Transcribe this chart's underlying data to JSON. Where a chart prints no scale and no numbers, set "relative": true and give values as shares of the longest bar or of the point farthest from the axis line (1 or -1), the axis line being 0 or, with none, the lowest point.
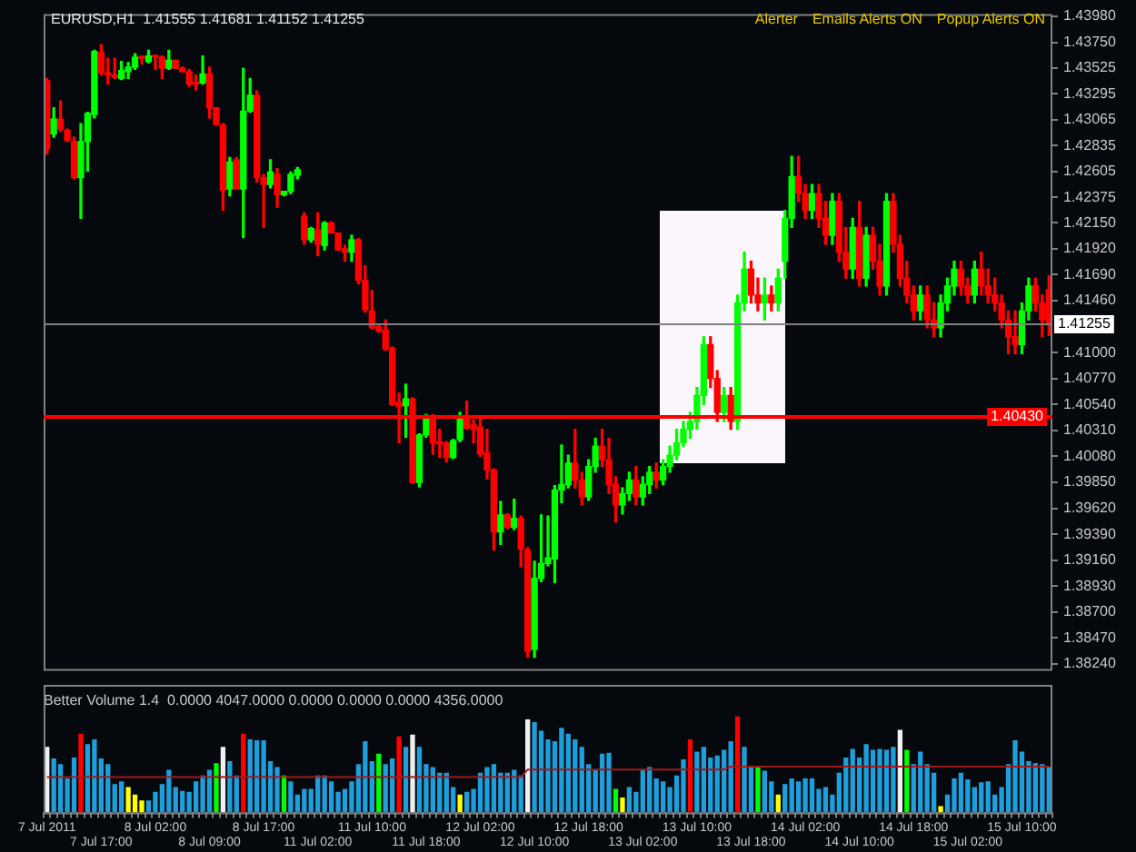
{
  "chart_data": [
    {
      "type": "candlestick",
      "title": "EURUSD,H1  1.41555 1.41681 1.41152 1.41255",
      "annotations": [
        "Alerter",
        "Emails Alerts ON",
        "Popup Alerts ON"
      ],
      "tick_labels": "y",
      "categories": [
        null,
        null,
        null,
        null,
        null,
        null,
        null,
        null,
        null,
        null,
        null,
        null,
        null,
        null,
        null,
        null,
        null,
        null,
        null,
        null,
        null,
        null,
        null,
        null,
        null,
        null,
        null,
        null,
        null,
        null,
        null,
        null,
        null,
        null,
        null,
        null,
        null,
        null,
        null,
        null,
        null,
        null,
        null,
        null,
        null,
        null,
        null,
        null,
        null,
        null,
        null,
        null,
        null,
        null,
        null,
        null,
        null,
        null,
        null,
        null,
        null,
        null,
        null,
        null,
        null,
        null,
        null,
        null,
        null,
        null,
        null,
        null,
        null,
        null,
        null,
        null,
        null,
        null,
        null,
        null,
        null,
        null,
        null,
        null,
        null,
        null,
        null,
        null,
        null,
        null,
        null,
        null,
        null,
        null,
        null,
        null,
        null,
        null,
        null,
        null,
        null,
        null,
        null,
        null,
        null,
        null,
        null,
        null,
        null,
        null,
        null,
        null,
        null,
        null,
        null,
        null,
        null,
        null,
        null,
        null,
        null,
        null,
        null,
        null,
        null,
        null,
        null,
        null,
        null,
        null,
        null,
        null,
        null,
        null,
        null,
        null,
        null,
        null,
        null,
        null,
        null,
        null,
        null,
        null,
        null,
        null,
        null,
        null,
        null
      ],
      "ohlc": [
        [
          1.4341,
          1.4343,
          1.4276,
          1.4281
        ],
        [
          1.4294,
          1.4317,
          1.4291,
          1.4307
        ],
        [
          1.4307,
          1.4323,
          1.4296,
          1.4298
        ],
        [
          1.4297,
          1.4298,
          1.4287,
          1.4288
        ],
        [
          1.4287,
          1.4291,
          1.4254,
          1.4255
        ],
        [
          1.4255,
          1.4303,
          1.4219,
          1.4287
        ],
        [
          1.4287,
          1.4313,
          1.4261,
          1.4312
        ],
        [
          1.4311,
          1.4368,
          1.4308,
          1.4367
        ],
        [
          1.4366,
          1.4373,
          1.4346,
          1.4348
        ],
        [
          1.4348,
          1.4361,
          1.4338,
          1.4346
        ],
        [
          1.4346,
          1.4361,
          1.4343,
          1.4344
        ],
        [
          1.4343,
          1.4358,
          1.4342,
          1.435
        ],
        [
          1.4349,
          1.4357,
          1.4343,
          1.4353
        ],
        [
          1.4353,
          1.4365,
          1.4351,
          1.4362
        ],
        [
          1.4362,
          1.4363,
          1.4356,
          1.4361
        ],
        [
          1.4358,
          1.4368,
          1.4357,
          1.4363
        ],
        [
          1.4363,
          1.4363,
          1.4351,
          1.4362
        ],
        [
          1.4362,
          1.4363,
          1.4343,
          1.4352
        ],
        [
          1.4352,
          1.4368,
          1.4351,
          1.4359
        ],
        [
          1.4359,
          1.4359,
          1.4352,
          1.4352
        ],
        [
          1.4352,
          1.4353,
          1.4349,
          1.4349
        ],
        [
          1.4349,
          1.4351,
          1.4336,
          1.4338
        ],
        [
          1.4339,
          1.4346,
          1.4333,
          1.4338
        ],
        [
          1.4339,
          1.4363,
          1.4338,
          1.4347
        ],
        [
          1.4347,
          1.4353,
          1.4308,
          1.4317
        ],
        [
          1.4317,
          1.4317,
          1.4302,
          1.4302
        ],
        [
          1.4302,
          1.4303,
          1.4226,
          1.4244
        ],
        [
          1.4245,
          1.4273,
          1.4239,
          1.4269
        ],
        [
          1.4271,
          1.4273,
          1.4245,
          1.4245
        ],
        [
          1.4245,
          1.4352,
          1.4202,
          1.4314
        ],
        [
          1.4314,
          1.4343,
          1.4313,
          1.4328
        ],
        [
          1.4328,
          1.4332,
          1.4251,
          1.4255
        ],
        [
          1.4255,
          1.4258,
          1.4211,
          1.4249
        ],
        [
          1.4249,
          1.4271,
          1.4246,
          1.426
        ],
        [
          1.4258,
          1.4263,
          1.4229,
          1.424
        ],
        [
          1.424,
          1.4243,
          1.4239,
          1.4243
        ],
        [
          1.4243,
          1.426,
          1.4241,
          1.4258
        ],
        [
          1.4257,
          1.4264,
          1.4254,
          1.4262
        ],
        [
          1.4221,
          1.4224,
          1.4196,
          1.42
        ],
        [
          1.42,
          1.4211,
          1.4198,
          1.421
        ],
        [
          1.4209,
          1.4224,
          1.4186,
          1.4196
        ],
        [
          1.4195,
          1.4216,
          1.4191,
          1.4215
        ],
        [
          1.4215,
          1.4216,
          1.4206,
          1.4206
        ],
        [
          1.4206,
          1.4206,
          1.4191,
          1.4191
        ],
        [
          1.4192,
          1.4195,
          1.4181,
          1.4189
        ],
        [
          1.4189,
          1.4204,
          1.4181,
          1.42
        ],
        [
          1.42,
          1.4201,
          1.4161,
          1.4164
        ],
        [
          1.4164,
          1.4177,
          1.4136,
          1.4138
        ],
        [
          1.4137,
          1.4155,
          1.4121,
          1.4122
        ],
        [
          1.4123,
          1.4125,
          1.4118,
          1.4119
        ],
        [
          1.412,
          1.4129,
          1.4102,
          1.4103
        ],
        [
          1.4104,
          1.4105,
          1.4053,
          1.4054
        ],
        [
          1.4056,
          1.4064,
          1.402,
          1.4052
        ],
        [
          1.4053,
          1.4072,
          1.4025,
          1.4059
        ],
        [
          1.4059,
          1.406,
          1.3984,
          1.3985
        ],
        [
          1.3985,
          1.4028,
          1.3981,
          1.4027
        ],
        [
          1.4027,
          1.4045,
          1.4025,
          1.4042
        ],
        [
          1.4042,
          1.4045,
          1.401,
          1.402
        ],
        [
          1.4021,
          1.4032,
          1.4007,
          1.4019
        ],
        [
          1.402,
          1.4021,
          1.4003,
          1.4007
        ],
        [
          1.4007,
          1.4023,
          1.4006,
          1.4022
        ],
        [
          1.4023,
          1.4047,
          1.4021,
          1.4043
        ],
        [
          1.4042,
          1.4057,
          1.4032,
          1.4033
        ],
        [
          1.4036,
          1.404,
          1.402,
          1.4032
        ],
        [
          1.4034,
          1.4042,
          1.4008,
          1.401
        ],
        [
          1.4011,
          1.4032,
          1.3988,
          1.3996
        ],
        [
          1.3996,
          1.3997,
          1.3925,
          1.3941
        ],
        [
          1.3941,
          1.3968,
          1.393,
          1.3956
        ],
        [
          1.3956,
          1.3957,
          1.3944,
          1.3945
        ],
        [
          1.3945,
          1.397,
          1.3943,
          1.3953
        ],
        [
          1.3953,
          1.3955,
          1.391,
          1.3926
        ],
        [
          1.3925,
          1.3927,
          1.383,
          1.3835
        ],
        [
          1.3837,
          1.3915,
          1.383,
          1.39
        ],
        [
          1.39,
          1.3956,
          1.3897,
          1.3913
        ],
        [
          1.3913,
          1.3955,
          1.3911,
          1.3918
        ],
        [
          1.3917,
          1.3982,
          1.3896,
          1.3978
        ],
        [
          1.3978,
          1.4018,
          1.3967,
          1.3983
        ],
        [
          1.3983,
          1.4009,
          1.398,
          1.4002
        ],
        [
          1.4002,
          1.4032,
          1.398,
          1.3987
        ],
        [
          1.3987,
          1.3994,
          1.3965,
          1.3972
        ],
        [
          1.3972,
          1.4005,
          1.3969,
          1.3999
        ],
        [
          1.3999,
          1.4024,
          1.3994,
          1.4017
        ],
        [
          1.4017,
          1.4032,
          1.3999,
          1.4005
        ],
        [
          1.4005,
          1.4024,
          1.3975,
          1.3983
        ],
        [
          1.3983,
          1.399,
          1.395,
          1.3965
        ],
        [
          1.3965,
          1.398,
          1.3957,
          1.3975
        ],
        [
          1.3975,
          1.3994,
          1.3969,
          1.3987
        ],
        [
          1.3987,
          1.3999,
          1.3965,
          1.3972
        ],
        [
          1.3972,
          1.399,
          1.3965,
          1.3983
        ],
        [
          1.3983,
          1.3999,
          1.3975,
          1.3994
        ],
        [
          1.3994,
          1.4002,
          1.398,
          1.3987
        ],
        [
          1.3987,
          1.4005,
          1.3983,
          1.3999
        ],
        [
          1.3999,
          1.4017,
          1.3994,
          1.4009
        ],
        [
          1.4009,
          1.4032,
          1.4005,
          1.402
        ],
        [
          1.402,
          1.4039,
          1.4017,
          1.4032
        ],
        [
          1.4032,
          1.4047,
          1.4024,
          1.4039
        ],
        [
          1.4039,
          1.4069,
          1.4032,
          1.4062
        ],
        [
          1.4062,
          1.4114,
          1.4054,
          1.4107
        ],
        [
          1.4107,
          1.4114,
          1.4069,
          1.4077
        ],
        [
          1.4077,
          1.4084,
          1.4039,
          1.4047
        ],
        [
          1.4047,
          1.4069,
          1.4039,
          1.4062
        ],
        [
          1.4062,
          1.4069,
          1.4032,
          1.4039
        ],
        [
          1.4039,
          1.4151,
          1.4032,
          1.4144
        ],
        [
          1.4144,
          1.4189,
          1.4137,
          1.4174
        ],
        [
          1.4174,
          1.4181,
          1.4144,
          1.4151
        ],
        [
          1.4151,
          1.4166,
          1.4137,
          1.4144
        ],
        [
          1.4144,
          1.4166,
          1.4129,
          1.4151
        ],
        [
          1.4151,
          1.4159,
          1.4137,
          1.4144
        ],
        [
          1.4144,
          1.4174,
          1.4137,
          1.4166
        ],
        [
          1.4181,
          1.4226,
          1.4166,
          1.4219
        ],
        [
          1.4219,
          1.4274,
          1.4211,
          1.4256
        ],
        [
          1.4256,
          1.4274,
          1.4234,
          1.4241
        ],
        [
          1.4241,
          1.4249,
          1.4219,
          1.4226
        ],
        [
          1.4226,
          1.4249,
          1.4219,
          1.4241
        ],
        [
          1.4241,
          1.4249,
          1.4211,
          1.4219
        ],
        [
          1.4219,
          1.4234,
          1.4196,
          1.4204
        ],
        [
          1.4204,
          1.4241,
          1.4196,
          1.4234
        ],
        [
          1.4234,
          1.4241,
          1.4181,
          1.4189
        ],
        [
          1.4189,
          1.4211,
          1.4166,
          1.4174
        ],
        [
          1.4174,
          1.4219,
          1.4166,
          1.4211
        ],
        [
          1.4211,
          1.4234,
          1.4159,
          1.4166
        ],
        [
          1.4166,
          1.4211,
          1.4159,
          1.4204
        ],
        [
          1.4204,
          1.4211,
          1.4174,
          1.4181
        ],
        [
          1.4181,
          1.4196,
          1.4151,
          1.4159
        ],
        [
          1.4159,
          1.4241,
          1.4151,
          1.4234
        ],
        [
          1.4234,
          1.4241,
          1.4189,
          1.4196
        ],
        [
          1.4196,
          1.4204,
          1.4159,
          1.4166
        ],
        [
          1.4166,
          1.4181,
          1.4144,
          1.4151
        ],
        [
          1.4151,
          1.4159,
          1.4129,
          1.4137
        ],
        [
          1.4137,
          1.4159,
          1.4129,
          1.4151
        ],
        [
          1.4151,
          1.4159,
          1.4122,
          1.4129
        ],
        [
          1.4129,
          1.4144,
          1.4114,
          1.4122
        ],
        [
          1.4122,
          1.4151,
          1.4114,
          1.4144
        ],
        [
          1.4144,
          1.4166,
          1.4137,
          1.4159
        ],
        [
          1.4159,
          1.4181,
          1.4151,
          1.4174
        ],
        [
          1.4174,
          1.4181,
          1.4151,
          1.4159
        ],
        [
          1.4159,
          1.4166,
          1.4144,
          1.4151
        ],
        [
          1.4151,
          1.4181,
          1.4144,
          1.4174
        ],
        [
          1.4174,
          1.4189,
          1.4151,
          1.4159
        ],
        [
          1.4159,
          1.4174,
          1.4144,
          1.4151
        ],
        [
          1.4151,
          1.4166,
          1.4137,
          1.4144
        ],
        [
          1.4144,
          1.4151,
          1.4122,
          1.4129
        ],
        [
          1.4129,
          1.4137,
          1.4099,
          1.4114
        ],
        [
          1.4114,
          1.4137,
          1.4099,
          1.4107
        ],
        [
          1.4107,
          1.4144,
          1.4099,
          1.4137
        ],
        [
          1.4137,
          1.4166,
          1.4129,
          1.4159
        ],
        [
          1.4159,
          1.4166,
          1.4137,
          1.4144
        ],
        [
          1.4144,
          1.4151,
          1.4114,
          1.4129
        ],
        [
          1.41555,
          1.41681,
          1.41152,
          1.41255
        ]
      ],
      "ylim": [
        1.3818,
        1.44
      ],
      "yticks": [
        {
          "value": 1.4398,
          "label": "1.43980"
        },
        {
          "value": 1.4375,
          "label": "1.43750"
        },
        {
          "value": 1.43525,
          "label": "1.43525"
        },
        {
          "value": 1.43295,
          "label": "1.43295"
        },
        {
          "value": 1.43065,
          "label": "1.43065"
        },
        {
          "value": 1.42835,
          "label": "1.42835"
        },
        {
          "value": 1.42605,
          "label": "1.42605"
        },
        {
          "value": 1.42375,
          "label": "1.42375"
        },
        {
          "value": 1.4215,
          "label": "1.42150"
        },
        {
          "value": 1.4192,
          "label": "1.41920"
        },
        {
          "value": 1.4169,
          "label": "1.41690"
        },
        {
          "value": 1.4146,
          "label": "1.41460"
        },
        {
          "value": 1.41,
          "label": "1.41000"
        },
        {
          "value": 1.4077,
          "label": "1.40770"
        },
        {
          "value": 1.4054,
          "label": "1.40540"
        },
        {
          "value": 1.4031,
          "label": "1.40310"
        },
        {
          "value": 1.4008,
          "label": "1.40080"
        },
        {
          "value": 1.3985,
          "label": "1.39850"
        },
        {
          "value": 1.3962,
          "label": "1.39620"
        },
        {
          "value": 1.3939,
          "label": "1.39390"
        },
        {
          "value": 1.3916,
          "label": "1.39160"
        },
        {
          "value": 1.3893,
          "label": "1.38930"
        },
        {
          "value": 1.387,
          "label": "1.38700"
        },
        {
          "value": 1.3847,
          "label": "1.38470"
        },
        {
          "value": 1.3824,
          "label": "1.38240"
        }
      ],
      "ref_lines": [
        {
          "axis": "y",
          "value": 1.41255,
          "label": "1.41255",
          "color": "#808080"
        },
        {
          "axis": "y",
          "value": 1.4043,
          "label": "1.40430",
          "color": "#ff0000"
        }
      ]
    },
    {
      "type": "bar",
      "title": "Better Volume 1.4  0.0000 4047.0000 0.0000 0.0000 0.0000 4356.0000",
      "relative": true,
      "tick_labels": "x",
      "categories": [
        "7 Jul 2011",
        null,
        null,
        null,
        null,
        null,
        null,
        null,
        "7 Jul 17:00",
        null,
        null,
        null,
        null,
        null,
        null,
        null,
        "8 Jul 02:00",
        null,
        null,
        null,
        null,
        null,
        null,
        null,
        "8 Jul 09:00",
        null,
        null,
        null,
        null,
        null,
        null,
        null,
        "8 Jul 17:00",
        null,
        null,
        null,
        null,
        null,
        null,
        null,
        "11 Jul 02:00",
        null,
        null,
        null,
        null,
        null,
        null,
        null,
        "11 Jul 10:00",
        null,
        null,
        null,
        null,
        null,
        null,
        null,
        "11 Jul 18:00",
        null,
        null,
        null,
        null,
        null,
        null,
        null,
        "12 Jul 02:00",
        null,
        null,
        null,
        null,
        null,
        null,
        null,
        "12 Jul 10:00",
        null,
        null,
        null,
        null,
        null,
        null,
        null,
        "12 Jul 18:00",
        null,
        null,
        null,
        null,
        null,
        null,
        null,
        "13 Jul 02:00",
        null,
        null,
        null,
        null,
        null,
        null,
        null,
        "13 Jul 10:00",
        null,
        null,
        null,
        null,
        null,
        null,
        null,
        "13 Jul 18:00",
        null,
        null,
        null,
        null,
        null,
        null,
        null,
        "14 Jul 02:00",
        null,
        null,
        null,
        null,
        null,
        null,
        null,
        "14 Jul 10:00",
        null,
        null,
        null,
        null,
        null,
        null,
        null,
        "14 Jul 18:00",
        null,
        null,
        null,
        null,
        null,
        null,
        null,
        "15 Jul 02:00",
        null,
        null,
        null,
        null,
        null,
        null,
        null,
        "15 Jul 10:00",
        null,
        null,
        null,
        null
      ],
      "series": [
        {
          "type": "bar",
          "values": [
            0.68,
            0.56,
            0.5,
            0.35,
            0.57,
            0.82,
            0.71,
            0.76,
            0.56,
            0.5,
            0.29,
            0.32,
            0.26,
            0.18,
            0.12,
            0.12,
            0.21,
            0.29,
            0.44,
            0.26,
            0.22,
            0.21,
            0.32,
            0.38,
            0.44,
            0.51,
            0.68,
            0.53,
            0.38,
            0.82,
            0.76,
            0.75,
            0.75,
            0.53,
            0.47,
            0.38,
            0.32,
            0.18,
            0.24,
            0.24,
            0.38,
            0.38,
            0.32,
            0.21,
            0.24,
            0.32,
            0.5,
            0.74,
            0.53,
            0.61,
            0.5,
            0.56,
            0.79,
            0.68,
            0.81,
            0.68,
            0.5,
            0.47,
            0.41,
            0.41,
            0.26,
            0.18,
            0.21,
            0.24,
            0.41,
            0.47,
            0.5,
            0.41,
            0.41,
            0.44,
            0.38,
            0.97,
            0.94,
            0.85,
            0.76,
            0.74,
            0.88,
            0.82,
            0.76,
            0.68,
            0.5,
            0.44,
            0.61,
            0.62,
            0.24,
            0.15,
            0.26,
            0.21,
            0.44,
            0.47,
            0.35,
            0.32,
            0.26,
            0.38,
            0.55,
            0.76,
            0.63,
            0.68,
            0.57,
            0.59,
            0.65,
            0.74,
            1,
            0.68,
            0.47,
            0.47,
            0.43,
            0.32,
            0.18,
            0.29,
            0.35,
            0.32,
            0.35,
            0.35,
            0.24,
            0.26,
            0.18,
            0.41,
            0.57,
            0.66,
            0.57,
            0.71,
            0.65,
            0.66,
            0.65,
            0.68,
            0.86,
            0.65,
            0.5,
            0.63,
            0.5,
            0.41,
            0.06,
            0.18,
            0.35,
            0.41,
            0.34,
            0.26,
            0.31,
            0.32,
            0.18,
            0.26,
            0.5,
            0.75,
            0.63,
            0.53,
            0.51,
            0.5,
            0.47
          ],
          "colors": [
            "#f0f0f0",
            "#1e9fdc",
            "#1e9fdc",
            "#1e9fdc",
            "#1e9fdc",
            "#ff0000",
            "#1e9fdc",
            "#1e9fdc",
            "#1e9fdc",
            "#1e9fdc",
            "#1e9fdc",
            "#1e9fdc",
            "#ffff00",
            "#ffff00",
            "#ffff00",
            "#1e9fdc",
            "#1e9fdc",
            "#1e9fdc",
            "#1e9fdc",
            "#1e9fdc",
            "#1e9fdc",
            "#1e9fdc",
            "#1e9fdc",
            "#1e9fdc",
            "#1e9fdc",
            "#00ff00",
            "#f0f0f0",
            "#1e9fdc",
            "#1e9fdc",
            "#ff0000",
            "#1e9fdc",
            "#1e9fdc",
            "#1e9fdc",
            "#1e9fdc",
            "#1e9fdc",
            "#00ff00",
            "#1e9fdc",
            "#1e9fdc",
            "#1e9fdc",
            "#1e9fdc",
            "#1e9fdc",
            "#1e9fdc",
            "#1e9fdc",
            "#1e9fdc",
            "#1e9fdc",
            "#1e9fdc",
            "#1e9fdc",
            "#1e9fdc",
            "#1e9fdc",
            "#00ff00",
            "#1e9fdc",
            "#1e9fdc",
            "#ff0000",
            "#1e9fdc",
            "#f0f0f0",
            "#1e9fdc",
            "#1e9fdc",
            "#1e9fdc",
            "#1e9fdc",
            "#1e9fdc",
            "#1e9fdc",
            "#ffff00",
            "#1e9fdc",
            "#1e9fdc",
            "#1e9fdc",
            "#1e9fdc",
            "#1e9fdc",
            "#1e9fdc",
            "#1e9fdc",
            "#1e9fdc",
            "#1e9fdc",
            "#f0f0f0",
            "#1e9fdc",
            "#1e9fdc",
            "#1e9fdc",
            "#1e9fdc",
            "#1e9fdc",
            "#1e9fdc",
            "#1e9fdc",
            "#1e9fdc",
            "#1e9fdc",
            "#1e9fdc",
            "#1e9fdc",
            "#1e9fdc",
            "#00ff00",
            "#ffff00",
            "#1e9fdc",
            "#1e9fdc",
            "#1e9fdc",
            "#1e9fdc",
            "#1e9fdc",
            "#1e9fdc",
            "#1e9fdc",
            "#1e9fdc",
            "#1e9fdc",
            "#ff0000",
            "#1e9fdc",
            "#1e9fdc",
            "#1e9fdc",
            "#1e9fdc",
            "#1e9fdc",
            "#1e9fdc",
            "#ff0000",
            "#1e9fdc",
            "#1e9fdc",
            "#00ff00",
            "#1e9fdc",
            "#1e9fdc",
            "#ffff00",
            "#1e9fdc",
            "#1e9fdc",
            "#1e9fdc",
            "#1e9fdc",
            "#1e9fdc",
            "#1e9fdc",
            "#1e9fdc",
            "#1e9fdc",
            "#1e9fdc",
            "#1e9fdc",
            "#1e9fdc",
            "#1e9fdc",
            "#1e9fdc",
            "#1e9fdc",
            "#1e9fdc",
            "#1e9fdc",
            "#1e9fdc",
            "#f0f0f0",
            "#00ff00",
            "#1e9fdc",
            "#1e9fdc",
            "#1e9fdc",
            "#1e9fdc",
            "#ffff00",
            "#1e9fdc",
            "#1e9fdc",
            "#1e9fdc",
            "#1e9fdc",
            "#1e9fdc",
            "#1e9fdc",
            "#1e9fdc",
            "#1e9fdc",
            "#1e9fdc",
            "#1e9fdc",
            "#1e9fdc",
            "#1e9fdc",
            "#1e9fdc",
            "#1e9fdc",
            "#1e9fdc",
            "#1e9fdc"
          ]
        },
        {
          "type": "line",
          "color": "#a01818",
          "values": [
            0.37,
            0.37,
            0.37,
            0.37,
            0.37,
            0.37,
            0.37,
            0.37,
            0.37,
            0.37,
            0.37,
            0.37,
            0.37,
            0.37,
            0.37,
            0.37,
            0.37,
            0.37,
            0.37,
            0.37,
            0.37,
            0.37,
            0.37,
            0.37,
            0.37,
            0.37,
            0.37,
            0.37,
            0.37,
            0.37,
            0.37,
            0.37,
            0.37,
            0.37,
            0.37,
            0.37,
            0.37,
            0.37,
            0.37,
            0.37,
            0.37,
            0.37,
            0.37,
            0.37,
            0.37,
            0.37,
            0.37,
            0.37,
            0.37,
            0.37,
            0.37,
            0.37,
            0.37,
            0.37,
            0.37,
            0.37,
            0.37,
            0.37,
            0.37,
            0.37,
            0.37,
            0.37,
            0.37,
            0.37,
            0.37,
            0.37,
            0.37,
            0.37,
            0.37,
            0.37,
            0.37,
            0.45,
            0.45,
            0.45,
            0.45,
            0.45,
            0.45,
            0.45,
            0.45,
            0.45,
            0.45,
            0.45,
            0.45,
            0.45,
            0.45,
            0.45,
            0.45,
            0.45,
            0.45,
            0.45,
            0.45,
            0.45,
            0.45,
            0.45,
            0.45,
            0.45,
            0.45,
            0.45,
            0.45,
            0.45,
            0.45,
            0.48,
            0.48,
            0.48,
            0.48,
            0.48,
            0.48,
            0.48,
            0.48,
            0.48,
            0.48,
            0.48,
            0.48,
            0.48,
            0.48,
            0.48,
            0.48,
            0.48,
            0.48,
            0.48,
            0.48,
            0.48,
            0.48,
            0.48,
            0.48,
            0.48,
            0.48,
            0.48,
            0.48,
            0.48,
            0.48,
            0.48,
            0.48,
            0.48,
            0.48,
            0.48,
            0.48,
            0.48,
            0.48,
            0.48,
            0.48,
            0.48,
            0.48,
            0.48,
            0.48,
            0.48,
            0.48,
            0.48,
            0.48
          ]
        }
      ]
    }
  ]
}
